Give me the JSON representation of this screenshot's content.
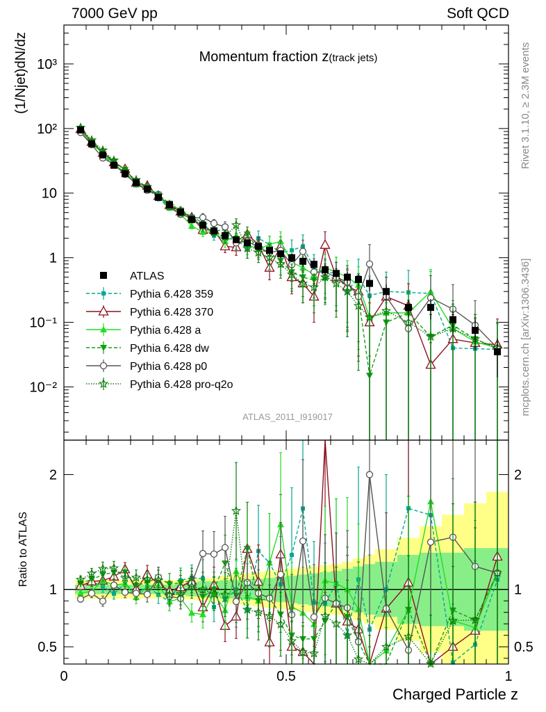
{
  "header": {
    "left": "7000 GeV pp",
    "right": "Soft QCD"
  },
  "plot_title": {
    "main": "Momentum fraction ",
    "z": "z",
    "sub": "(track jets)"
  },
  "side_labels": {
    "rivet": "Rivet 3.1.10, ≥ 2.3M events",
    "mcplots": "mcplots.cern.ch [arXiv:1306.3436]"
  },
  "analysis_id": "ATLAS_2011_I919017",
  "colors": {
    "ATLAS": "#000000",
    "p359": "#00a88f",
    "p370": "#8b1020",
    "pa": "#22dd22",
    "pdw": "#10a010",
    "pp0": "#555555",
    "pq2o": "#0a7a0a",
    "band_yellow": "#ffff88",
    "band_green": "#88ee88"
  },
  "chart_data": [
    {
      "type": "scatter",
      "title": "Momentum fraction z(track jets)",
      "xlabel": "",
      "ylabel": "(1/Njet)dN/dz",
      "xlim": [
        0,
        1
      ],
      "ylim": [
        0.0015,
        4000
      ],
      "yscale": "log",
      "legend_position": "left",
      "y_tick_labels": [
        "10⁻²",
        "10⁻¹",
        "1",
        "10",
        "10²",
        "10³"
      ],
      "x": [
        0.0375,
        0.0625,
        0.0875,
        0.1125,
        0.1375,
        0.1625,
        0.1875,
        0.2125,
        0.2375,
        0.2625,
        0.2875,
        0.3125,
        0.3375,
        0.3625,
        0.3875,
        0.4125,
        0.4375,
        0.4625,
        0.4875,
        0.5125,
        0.5375,
        0.5625,
        0.5875,
        0.6125,
        0.6375,
        0.6625,
        0.6875,
        0.725,
        0.775,
        0.825,
        0.875,
        0.925,
        0.975
      ],
      "series": [
        {
          "name": "ATLAS",
          "values": [
            95,
            58,
            39,
            27,
            20,
            14.5,
            11.5,
            8.6,
            6.6,
            5.1,
            3.9,
            3.2,
            2.6,
            2.2,
            1.9,
            1.7,
            1.5,
            1.3,
            1.15,
            1.0,
            0.88,
            0.79,
            0.65,
            0.57,
            0.5,
            0.46,
            0.4,
            0.3,
            0.17,
            0.17,
            0.11,
            0.075,
            0.035
          ],
          "err": [
            0.05,
            0.05,
            0.05,
            0.05,
            0.05,
            0.05,
            0.06,
            0.06,
            0.06,
            0.07,
            0.07,
            0.08,
            0.08,
            0.09,
            0.1,
            0.1,
            0.12,
            0.12,
            0.13,
            0.14,
            0.15,
            0.16,
            0.17,
            0.18,
            0.2,
            0.22,
            0.24,
            0.28,
            0.3,
            0.35,
            0.4,
            0.5,
            0.6
          ]
        },
        {
          "name": "Pythia 6.428 359",
          "values": [
            97,
            62,
            40,
            26,
            21,
            14,
            11.8,
            8.2,
            5.9,
            5.5,
            4.3,
            3.5,
            2.2,
            2.0,
            1.9,
            1.4,
            2.0,
            1.6,
            1.2,
            1.3,
            1.5,
            0.7,
            0.57,
            0.6,
            0.3,
            0.5,
            0.26,
            0.3,
            0.29,
            0.28,
            0.04,
            0.039,
            0.038
          ],
          "err": [
            0.03,
            0.04,
            0.05,
            0.05,
            0.05,
            0.06,
            0.07,
            0.08,
            0.09,
            0.1,
            0.1,
            0.15,
            0.15,
            0.2,
            0.25,
            0.3,
            0.3,
            0.35,
            0.4,
            0.45,
            0.5,
            0.6,
            0.6,
            0.7,
            0.8,
            0.9,
            1,
            1,
            1.2,
            1.2,
            1.4,
            1.4,
            1.5
          ]
        },
        {
          "name": "Pythia 6.428 370",
          "values": [
            98,
            62,
            42,
            30,
            23.5,
            14.5,
            13,
            9,
            6.5,
            5.2,
            4.2,
            2.7,
            2.7,
            1.5,
            1.45,
            2.3,
            1.6,
            0.7,
            1.5,
            0.5,
            0.4,
            0.25,
            1.58,
            0.5,
            0.36,
            0.3,
            0.1,
            0.25,
            0.18,
            0.022,
            0.055,
            0.048,
            0.045
          ],
          "err": [
            0.03,
            0.04,
            0.05,
            0.05,
            0.05,
            0.06,
            0.07,
            0.08,
            0.09,
            0.1,
            0.1,
            0.15,
            0.15,
            0.2,
            0.25,
            0.3,
            0.3,
            0.35,
            0.4,
            0.45,
            0.5,
            0.6,
            0.6,
            0.7,
            0.8,
            0.9,
            1,
            1,
            1.2,
            1.2,
            1.4,
            1.4,
            1.5
          ]
        },
        {
          "name": "Pythia 6.428 a",
          "values": [
            92,
            57,
            42,
            28,
            21,
            13.5,
            11.8,
            8.9,
            5.9,
            4.7,
            3.1,
            2.5,
            2.5,
            1.8,
            2.2,
            1.6,
            1.35,
            1.6,
            1.8,
            0.85,
            0.7,
            0.55,
            0.7,
            0.6,
            0.5,
            0.38,
            0.12,
            0.14,
            0.14,
            0.3,
            0.08,
            0.05,
            0.04
          ],
          "err": [
            0.03,
            0.04,
            0.05,
            0.05,
            0.05,
            0.06,
            0.07,
            0.08,
            0.09,
            0.1,
            0.1,
            0.15,
            0.15,
            0.2,
            0.25,
            0.3,
            0.3,
            0.35,
            0.4,
            0.45,
            0.5,
            0.6,
            0.6,
            0.7,
            0.8,
            0.9,
            1,
            1,
            1.2,
            1.2,
            1.4,
            1.4,
            1.5
          ]
        },
        {
          "name": "Pythia 6.428 dw",
          "values": [
            100,
            63,
            44,
            31,
            23,
            15,
            12.2,
            9.5,
            6.9,
            5.4,
            4.2,
            3.0,
            2.6,
            2.7,
            1.8,
            2.3,
            1.35,
            1.2,
            0.9,
            0.6,
            0.5,
            0.45,
            0.47,
            0.5,
            0.38,
            0.25,
            0.015,
            0.1,
            0.14,
            0.06,
            0.09,
            0.055,
            0.04
          ],
          "err": [
            0.03,
            0.04,
            0.05,
            0.05,
            0.05,
            0.06,
            0.07,
            0.08,
            0.09,
            0.1,
            0.1,
            0.15,
            0.15,
            0.2,
            0.25,
            0.3,
            0.3,
            0.35,
            0.4,
            0.45,
            0.5,
            0.6,
            0.6,
            0.7,
            0.8,
            0.9,
            1,
            1,
            1.2,
            1.2,
            1.4,
            1.4,
            1.5
          ]
        },
        {
          "name": "Pythia 6.428 p0",
          "values": [
            87,
            56,
            35,
            28,
            19.5,
            14,
            11,
            9.5,
            6.2,
            4.7,
            4.1,
            4.2,
            3.4,
            3.0,
            1.7,
            1.8,
            1.45,
            1.2,
            1.3,
            0.78,
            1.25,
            0.6,
            0.6,
            0.5,
            0.42,
            0.25,
            0.8,
            0.25,
            0.08,
            0.24,
            0.16,
            0.09,
            0.04
          ],
          "err": [
            0.03,
            0.04,
            0.05,
            0.05,
            0.05,
            0.06,
            0.07,
            0.08,
            0.09,
            0.1,
            0.1,
            0.15,
            0.15,
            0.2,
            0.25,
            0.3,
            0.3,
            0.35,
            0.4,
            0.45,
            0.5,
            0.6,
            0.6,
            0.7,
            0.8,
            0.9,
            1,
            1,
            1.2,
            1.2,
            1.4,
            1.4,
            1.5
          ]
        },
        {
          "name": "Pythia 6.428 pro-q2o",
          "values": [
            103,
            66,
            46,
            32,
            22,
            16,
            12.5,
            9.3,
            6.3,
            4.9,
            4.0,
            3.2,
            2.5,
            2.1,
            3.2,
            1.4,
            1.2,
            1.0,
            0.8,
            0.55,
            0.4,
            0.35,
            0.5,
            0.4,
            0.3,
            0.18,
            0.12,
            0.15,
            0.1,
            0.06,
            0.08,
            0.055,
            0.04
          ],
          "err": [
            0.03,
            0.04,
            0.05,
            0.05,
            0.05,
            0.06,
            0.07,
            0.08,
            0.09,
            0.1,
            0.1,
            0.15,
            0.15,
            0.2,
            0.25,
            0.3,
            0.3,
            0.35,
            0.4,
            0.45,
            0.5,
            0.6,
            0.6,
            0.7,
            0.8,
            0.9,
            1,
            1,
            1.2,
            1.2,
            1.4,
            1.4,
            1.5
          ]
        }
      ]
    },
    {
      "type": "line",
      "title": "",
      "xlabel": "Charged Particle z",
      "ylabel": "Ratio to ATLAS",
      "xlim": [
        0,
        1
      ],
      "ylim": [
        0.35,
        2.3
      ],
      "x_tick_labels": [
        "0",
        "0.5",
        "1"
      ],
      "y_tick_labels": [
        "0.5",
        "1",
        "2"
      ],
      "reference_line": 1,
      "band_x_edges": [
        0.025,
        0.05,
        0.075,
        0.1,
        0.125,
        0.15,
        0.175,
        0.2,
        0.225,
        0.25,
        0.275,
        0.3,
        0.325,
        0.35,
        0.375,
        0.4,
        0.425,
        0.45,
        0.475,
        0.5,
        0.525,
        0.55,
        0.575,
        0.6,
        0.625,
        0.65,
        0.675,
        0.7,
        0.75,
        0.8,
        0.85,
        0.9,
        0.95,
        1.0
      ],
      "band_yellow_halfwidth": [
        0.08,
        0.08,
        0.08,
        0.08,
        0.08,
        0.08,
        0.08,
        0.08,
        0.08,
        0.08,
        0.09,
        0.1,
        0.1,
        0.12,
        0.13,
        0.14,
        0.15,
        0.16,
        0.17,
        0.18,
        0.19,
        0.2,
        0.21,
        0.22,
        0.24,
        0.27,
        0.3,
        0.35,
        0.45,
        0.55,
        0.65,
        0.75,
        0.85
      ],
      "band_green_halfwidth": [
        0.04,
        0.04,
        0.04,
        0.04,
        0.04,
        0.04,
        0.04,
        0.04,
        0.04,
        0.05,
        0.06,
        0.07,
        0.07,
        0.08,
        0.08,
        0.09,
        0.09,
        0.1,
        0.11,
        0.12,
        0.13,
        0.14,
        0.15,
        0.16,
        0.18,
        0.2,
        0.22,
        0.24,
        0.3,
        0.32,
        0.32,
        0.36,
        0.36
      ],
      "series_note": "ratios = MC value / ATLAS value per bin"
    }
  ]
}
